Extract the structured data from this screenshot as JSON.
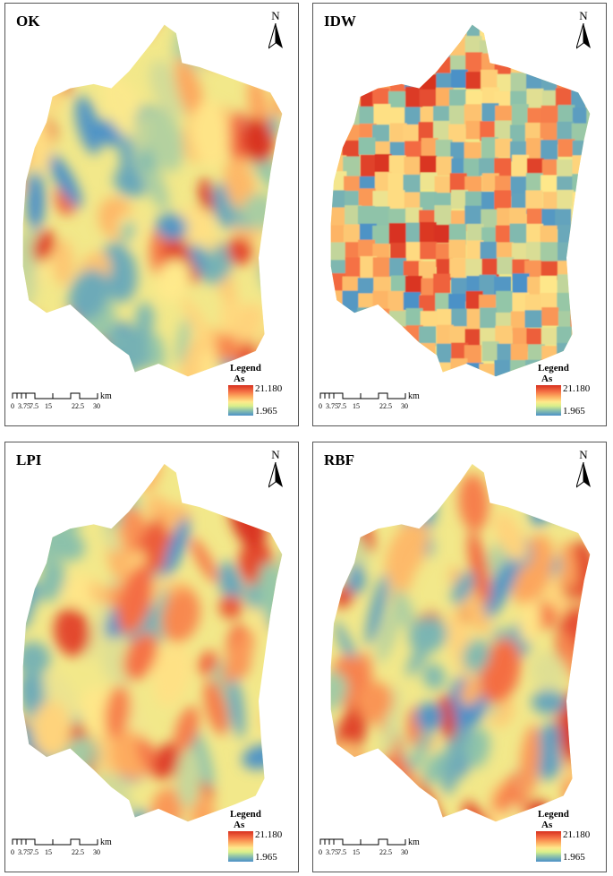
{
  "panels": [
    {
      "title": "OK",
      "seed": 11,
      "style": "smooth"
    },
    {
      "title": "IDW",
      "seed": 29,
      "style": "blocky"
    },
    {
      "title": "LPI",
      "seed": 47,
      "style": "smooth"
    },
    {
      "title": "RBF",
      "seed": 63,
      "style": "smooth"
    }
  ],
  "north_label": "N",
  "legend": {
    "title": "Legend",
    "variable": "As",
    "max": "21.180",
    "min": "1.965"
  },
  "scalebar": {
    "ticks": [
      "0",
      "3.75",
      "7.5",
      "15",
      "22.5",
      "30"
    ],
    "unit": "km"
  },
  "colors": {
    "high": "#d7301f",
    "mid": "#fee98b",
    "low": "#4a90c8"
  }
}
